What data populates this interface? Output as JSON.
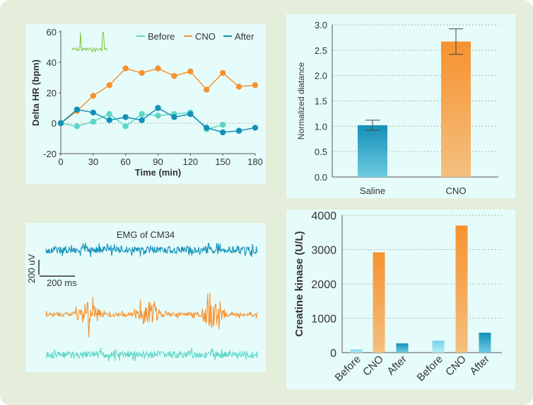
{
  "colors": {
    "background": "#e4eedb",
    "panel": "#e6fcfa",
    "before": "#5ed6c6",
    "cno": "#f7922f",
    "after": "#1391b8",
    "inset": "#7cc62e",
    "grid": "#9a9a9a",
    "axis": "#555555"
  },
  "chart_data": [
    {
      "type": "line",
      "xlabel": "Time (min)",
      "ylabel": "Delta HR (bpm)",
      "xlim": [
        0,
        180
      ],
      "ylim": [
        -20,
        60
      ],
      "xticks": [
        0,
        30,
        60,
        90,
        120,
        150,
        180
      ],
      "yticks": [
        -20,
        0,
        20,
        40,
        60
      ],
      "reference_line": 0,
      "legend": "top-right",
      "series": [
        {
          "name": "Before",
          "x": [
            0,
            15,
            30,
            45,
            60,
            75,
            90,
            105,
            120,
            135,
            150
          ],
          "y": [
            0,
            -2,
            1,
            6,
            -2,
            6,
            5,
            6,
            7,
            -4,
            -1
          ]
        },
        {
          "name": "CNO",
          "x": [
            0,
            15,
            30,
            45,
            60,
            75,
            90,
            105,
            120,
            135,
            150,
            165,
            180
          ],
          "y": [
            0,
            8,
            18,
            25,
            36,
            33,
            36,
            31,
            34,
            22,
            33,
            24,
            25
          ]
        },
        {
          "name": "After",
          "x": [
            0,
            15,
            30,
            45,
            60,
            75,
            90,
            105,
            120,
            135,
            150,
            165,
            180
          ],
          "y": [
            0,
            9,
            7,
            2,
            4,
            2,
            10,
            4,
            6,
            -3,
            -6,
            -5,
            -3
          ]
        }
      ]
    },
    {
      "type": "bar",
      "ylabel": "Normalized diatance",
      "categories": [
        "Saline",
        "CNO"
      ],
      "values": [
        1.02,
        2.67
      ],
      "errors": [
        0.1,
        0.25
      ],
      "ylim": [
        0,
        3.0
      ],
      "yticks": [
        "0.0",
        "0.5",
        "1.0",
        "1.5",
        "2.0",
        "2.5",
        "3.0"
      ],
      "grid": true
    },
    {
      "type": "line",
      "title": "EMG of CM34",
      "scalebar": {
        "y_label": "200 uV",
        "x_label": "200 ms"
      },
      "traces": [
        "After",
        "CNO",
        "Before"
      ]
    },
    {
      "type": "bar",
      "ylabel": "Creatine kinase (U/L)",
      "categories": [
        "Before",
        "CNO",
        "After",
        "Before",
        "CNO",
        "After"
      ],
      "values": [
        90,
        2920,
        270,
        350,
        3700,
        580
      ],
      "ylim": [
        0,
        4000
      ],
      "yticks": [
        "0",
        "1000",
        "2000",
        "3000",
        "4000"
      ],
      "grid": true
    }
  ]
}
